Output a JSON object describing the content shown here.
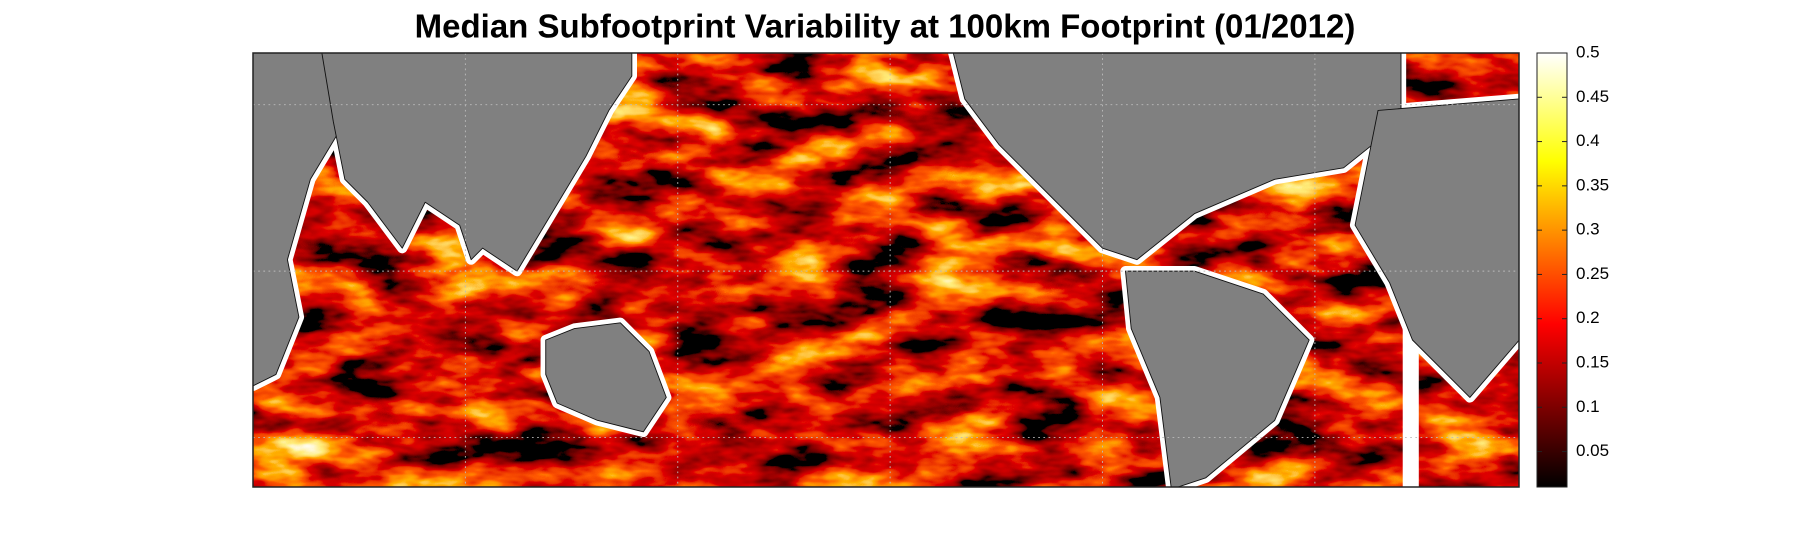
{
  "chart_data": {
    "type": "heatmap",
    "title": "Median Subfootprint Variability at 100km Footprint (01/2012)",
    "colormap": "hot",
    "colorbar": {
      "lim": [
        0.01,
        0.5
      ],
      "ticks": [
        0.05,
        0.1,
        0.15,
        0.2,
        0.25,
        0.3,
        0.35,
        0.4,
        0.45,
        0.5
      ]
    }
  }
}
